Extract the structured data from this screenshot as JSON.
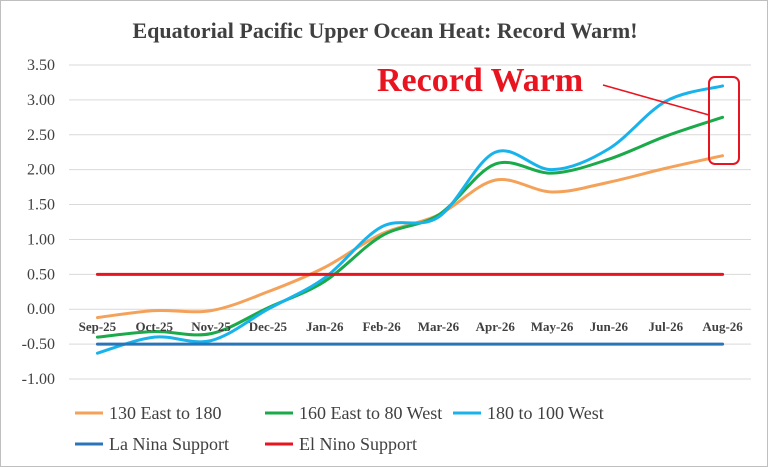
{
  "chart_data": {
    "type": "line",
    "title": "Equatorial Pacific Upper Ocean Heat: Record Warm!",
    "xlabel": "",
    "ylabel": "",
    "categories": [
      "Sep-25",
      "Oct-25",
      "Nov-25",
      "Dec-25",
      "Jan-26",
      "Feb-26",
      "Mar-26",
      "Apr-26",
      "May-26",
      "Jun-26",
      "Jul-26",
      "Aug-26"
    ],
    "ylim": [
      -1.0,
      3.5
    ],
    "ytick_labels": [
      "3.50",
      "3.00",
      "2.50",
      "2.00",
      "1.50",
      "1.00",
      "0.50",
      "0.00",
      "-0.50",
      "-1.00"
    ],
    "grid": true,
    "legend_position": "bottom",
    "series": [
      {
        "name": "130 East to 180",
        "color": "#f4a25a",
        "values": [
          -0.12,
          -0.02,
          -0.02,
          0.25,
          0.6,
          1.08,
          1.35,
          1.85,
          1.68,
          1.82,
          2.02,
          2.2
        ]
      },
      {
        "name": "160 East to 80 West",
        "color": "#1aaa4a",
        "values": [
          -0.4,
          -0.32,
          -0.35,
          0.02,
          0.4,
          1.05,
          1.35,
          2.08,
          1.95,
          2.15,
          2.48,
          2.75
        ]
      },
      {
        "name": "180 to 100 West",
        "color": "#19b3ec",
        "values": [
          -0.63,
          -0.4,
          -0.45,
          0.0,
          0.45,
          1.18,
          1.32,
          2.25,
          2.0,
          2.3,
          2.98,
          3.2
        ]
      },
      {
        "name": "La Nina Support",
        "color": "#2a74b8",
        "values": [
          -0.5,
          -0.5,
          -0.5,
          -0.5,
          -0.5,
          -0.5,
          -0.5,
          -0.5,
          -0.5,
          -0.5,
          -0.5,
          -0.5
        ]
      },
      {
        "name": "El Nino Support",
        "color": "#e8141f",
        "values": [
          0.5,
          0.5,
          0.5,
          0.5,
          0.5,
          0.5,
          0.5,
          0.5,
          0.5,
          0.5,
          0.5,
          0.5
        ]
      }
    ],
    "annotations": [
      {
        "text": "Record Warm",
        "color": "#e8141f"
      }
    ]
  }
}
